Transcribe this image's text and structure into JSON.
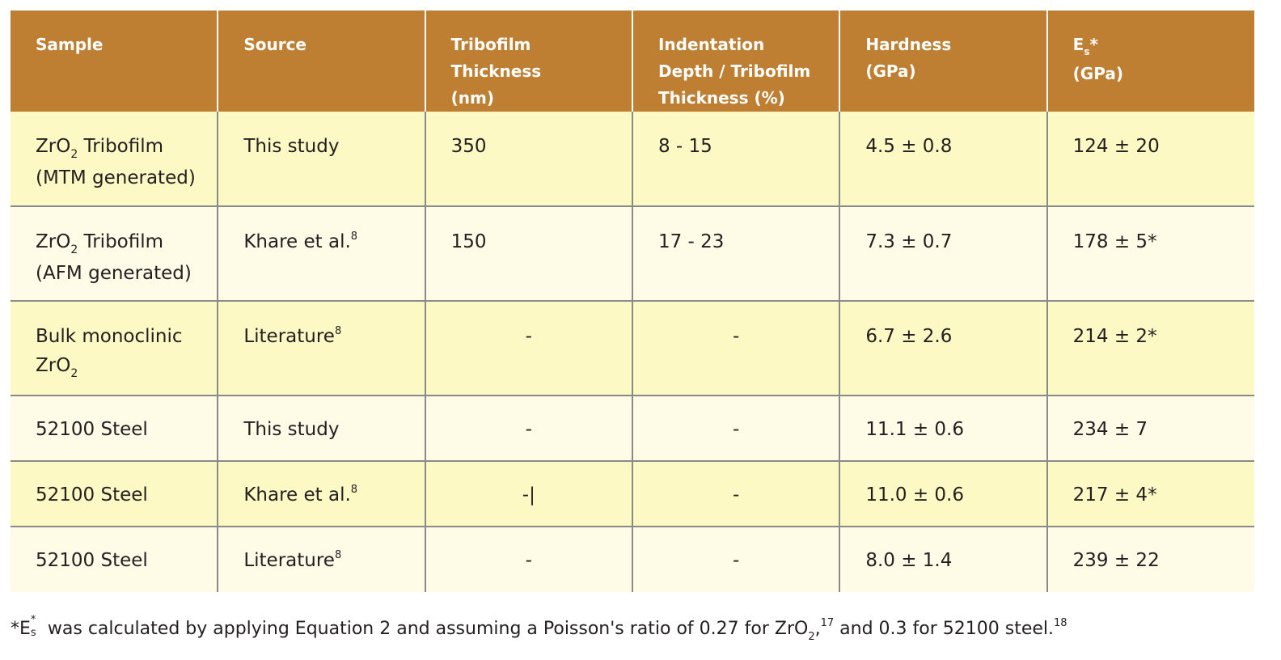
{
  "table": {
    "headers": [
      {
        "lines": [
          "Sample"
        ]
      },
      {
        "lines": [
          "Source"
        ]
      },
      {
        "lines": [
          "Tribofilm",
          "Thickness",
          "(nm)"
        ]
      },
      {
        "lines": [
          "Indentation",
          "Depth / Tribofilm",
          "Thickness (%)"
        ]
      },
      {
        "lines": [
          "Hardness",
          "(GPa)"
        ]
      },
      {
        "main": "E",
        "sub": "s",
        "after": "*",
        "line2": "(GPa)"
      }
    ],
    "rows": [
      {
        "sample_line1_pre": "ZrO",
        "sample_line1_sub": "2",
        "sample_line1_post": " Tribofilm",
        "sample_line2": "(MTM generated)",
        "source": "This study",
        "source_sup": "",
        "thickness": "350",
        "depth": "8 - 15",
        "hardness": "4.5 ± 0.8",
        "es": "124 ± 20"
      },
      {
        "sample_line1_pre": "ZrO",
        "sample_line1_sub": "2",
        "sample_line1_post": " Tribofilm",
        "sample_line2": "(AFM generated)",
        "source": "Khare et al.",
        "source_sup": "8",
        "thickness": "150",
        "depth": "17 - 23",
        "hardness": "7.3 ± 0.7",
        "es": "178 ± 5*"
      },
      {
        "sample_line1_pre": "Bulk monoclinic",
        "sample_line1_sub": "",
        "sample_line1_post": "",
        "sample_line2_pre": "ZrO",
        "sample_line2_sub": "2",
        "source": "Literature",
        "source_sup": "8",
        "thickness": "-",
        "depth": "-",
        "hardness": "6.7 ± 2.6",
        "es": "214 ± 2*"
      },
      {
        "sample": "52100 Steel",
        "source": "This study",
        "source_sup": "",
        "thickness": "-",
        "depth": "-",
        "hardness": "11.1 ± 0.6",
        "es": "234 ± 7"
      },
      {
        "sample": "52100 Steel",
        "source": "Khare et al.",
        "source_sup": "8",
        "thickness": "-|",
        "depth": "-",
        "hardness": "11.0 ± 0.6",
        "es": "217 ± 4*"
      },
      {
        "sample": "52100 Steel",
        "source": "Literature",
        "source_sup": "8",
        "thickness": "-",
        "depth": "-",
        "hardness": "8.0 ± 1.4",
        "es": "239 ± 22"
      }
    ]
  },
  "footnote": {
    "star": "*",
    "e_main": "E",
    "e_sub": "s",
    "e_sup": "*",
    "text1": " was calculated by applying Equation 2 and assuming a Poisson's ratio of 0.27 for ZrO",
    "zr_sub": "2",
    "comma": ",",
    "ref1": "17",
    "text2": " and 0.3 for 52100 steel.",
    "ref2": "18"
  },
  "colors": {
    "header_bg": "#bf7f33",
    "row_odd_bg": "#fdf9c5",
    "row_even_bg": "#fefbe7",
    "grid": "#8a8a8a"
  }
}
